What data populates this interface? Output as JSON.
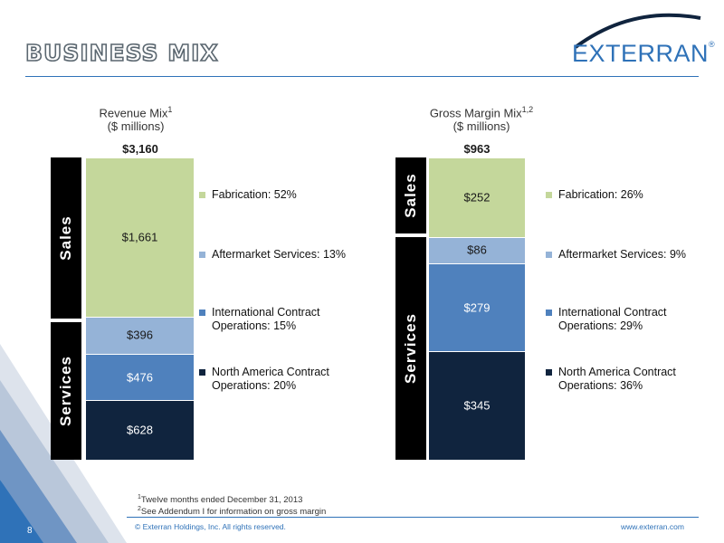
{
  "slide": {
    "title": "BUSINESS MIX",
    "logo_text": "EXTERRAN",
    "logo_mark": "®",
    "page_number": "8",
    "copyright": "© Exterran Holdings, Inc. All rights reserved.",
    "website": "www.exterran.com",
    "footnotes": [
      {
        "sup": "1",
        "text": "Twelve months ended December 31, 2013"
      },
      {
        "sup": "2",
        "text": "See Addendum I for information on gross margin"
      }
    ],
    "colors": {
      "accent": "#2f72b8",
      "fabrication": "#c4d79b",
      "aftermarket": "#95b3d7",
      "international": "#4f81bd",
      "north_america": "#10243e",
      "side_label": "#000000"
    }
  },
  "chart_data": [
    {
      "type": "bar",
      "stacked": true,
      "title": "Revenue Mix",
      "title_sup": "1",
      "subtitle": "($ millions)",
      "total_label": "$3,160",
      "total": 3160,
      "groups": [
        {
          "label": "Sales",
          "series": [
            "Fabrication"
          ]
        },
        {
          "label": "Services",
          "series": [
            "Aftermarket Services",
            "International Contract Operations",
            "North America Contract Operations"
          ]
        }
      ],
      "series": [
        {
          "name": "North America Contract Operations",
          "value": 628,
          "label": "$628",
          "legend": "North America Contract Operations: 20%",
          "color": "#10243e",
          "text_color": "#ffffff"
        },
        {
          "name": "International Contract Operations",
          "value": 476,
          "label": "$476",
          "legend": "International Contract Operations: 15%",
          "color": "#4f81bd",
          "text_color": "#ffffff"
        },
        {
          "name": "Aftermarket Services",
          "value": 396,
          "label": "$396",
          "legend": "Aftermarket Services: 13%",
          "color": "#95b3d7",
          "text_color": "#1a1a1a"
        },
        {
          "name": "Fabrication",
          "value": 1661,
          "label": "$1,661",
          "legend": "Fabrication: 52%",
          "color": "#c4d79b",
          "text_color": "#1a1a1a"
        }
      ]
    },
    {
      "type": "bar",
      "stacked": true,
      "title": "Gross Margin Mix",
      "title_sup": "1,2",
      "subtitle": "($ millions)",
      "total_label": "$963",
      "total": 963,
      "groups": [
        {
          "label": "Sales",
          "series": [
            "Fabrication"
          ]
        },
        {
          "label": "Services",
          "series": [
            "Aftermarket Services",
            "International Contract Operations",
            "North America Contract Operations"
          ]
        }
      ],
      "series": [
        {
          "name": "North America Contract Operations",
          "value": 345,
          "label": "$345",
          "legend": "North America Contract Operations: 36%",
          "color": "#10243e",
          "text_color": "#ffffff"
        },
        {
          "name": "International Contract Operations",
          "value": 279,
          "label": "$279",
          "legend": "International Contract Operations: 29%",
          "color": "#4f81bd",
          "text_color": "#ffffff"
        },
        {
          "name": "Aftermarket Services",
          "value": 86,
          "label": "$86",
          "legend": "Aftermarket Services: 9%",
          "color": "#95b3d7",
          "text_color": "#1a1a1a"
        },
        {
          "name": "Fabrication",
          "value": 252,
          "label": "$252",
          "legend": "Fabrication: 26%",
          "color": "#c4d79b",
          "text_color": "#1a1a1a"
        }
      ]
    }
  ]
}
